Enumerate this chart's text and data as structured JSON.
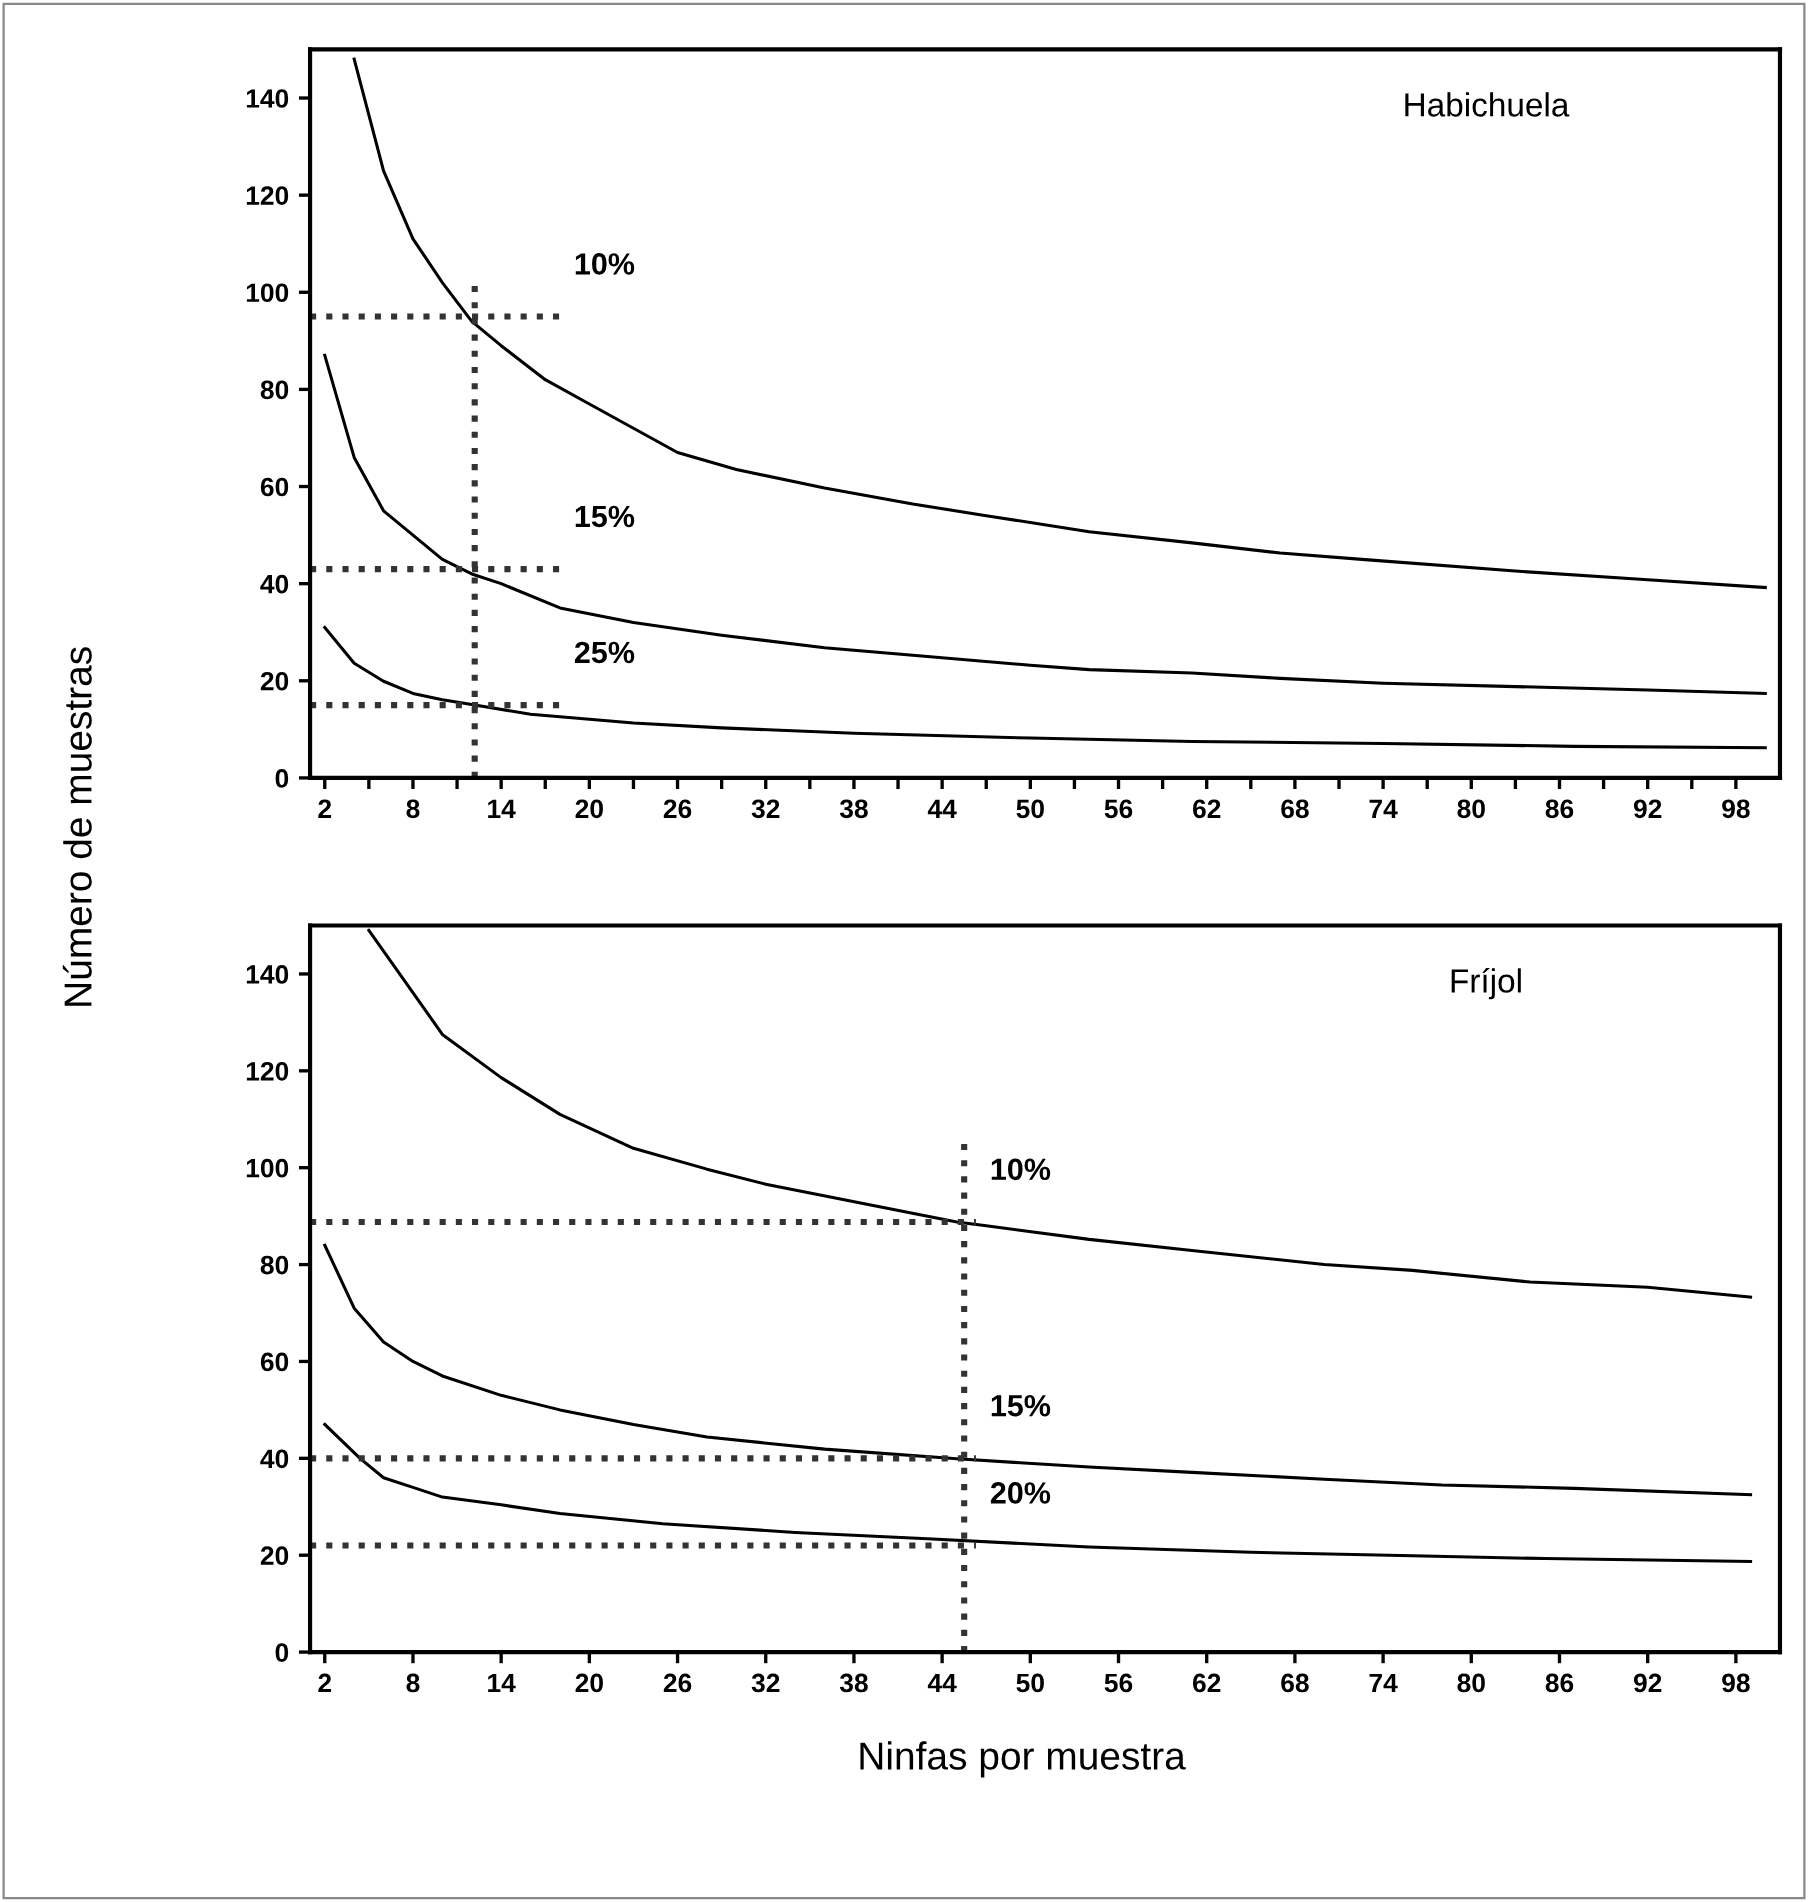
{
  "chart_data": [
    {
      "type": "line",
      "title": "Habichuela",
      "ylabel": "Número de muestras",
      "xlim": [
        1,
        101
      ],
      "ylim": [
        0,
        150
      ],
      "xticks": [
        2,
        {
          "value": 5,
          "label": null
        },
        8,
        {
          "value": 11,
          "label": null
        },
        14,
        {
          "value": 17,
          "label": null
        },
        20,
        {
          "value": 23,
          "label": null
        },
        26,
        {
          "value": 29,
          "label": null
        },
        32,
        {
          "value": 35,
          "label": null
        },
        38,
        {
          "value": 41,
          "label": null
        },
        44,
        {
          "value": 47,
          "label": null
        },
        50,
        {
          "value": 53,
          "label": null
        },
        56,
        {
          "value": 59,
          "label": null
        },
        62,
        {
          "value": 65,
          "label": null
        },
        68,
        {
          "value": 71,
          "label": null
        },
        74,
        {
          "value": 77,
          "label": null
        },
        80,
        {
          "value": 83,
          "label": null
        },
        86,
        {
          "value": 89,
          "label": null
        },
        92,
        {
          "value": 95,
          "label": null
        },
        98
      ],
      "yticks": [
        0,
        20,
        40,
        60,
        80,
        100,
        120,
        140
      ],
      "grid": false,
      "marker": "none",
      "line_style": "solid",
      "series": [
        {
          "color": "#000000",
          "x": [
            4,
            6,
            8,
            10,
            12,
            14,
            17,
            20,
            23,
            26,
            30,
            36,
            42,
            47,
            54,
            61,
            67,
            73,
            83,
            92,
            100
          ],
          "values": [
            148,
            125,
            111,
            102,
            94,
            89,
            82,
            77,
            72,
            67,
            63.5,
            59.7,
            56.4,
            54,
            50.7,
            48.4,
            46.3,
            44.9,
            42.6,
            40.8,
            39.2
          ]
        },
        {
          "color": "#000000",
          "x": [
            2,
            4,
            6,
            8,
            10,
            12,
            14,
            18,
            23,
            29,
            36,
            43,
            50,
            54,
            61,
            67,
            74,
            83,
            92,
            100
          ],
          "values": [
            87,
            66,
            55,
            50,
            45,
            42,
            40,
            35,
            32,
            29.4,
            26.8,
            25,
            23.2,
            22.3,
            21.6,
            20.5,
            19.5,
            18.8,
            18.1,
            17.4
          ]
        },
        {
          "color": "#000000",
          "x": [
            2,
            4,
            6,
            8,
            10,
            12,
            16,
            23,
            29,
            38,
            50,
            61,
            74,
            87,
            100
          ],
          "values": [
            31,
            23.6,
            19.9,
            17.4,
            16.1,
            15.1,
            13.1,
            11.3,
            10.3,
            9.2,
            8.2,
            7.5,
            7.1,
            6.5,
            6.2
          ]
        },
        {
          "color": "#333333",
          "type": "line",
          "line_style": "dotted",
          "x": [
            1,
            18
          ],
          "values": [
            95,
            95
          ]
        },
        {
          "color": "#333333",
          "type": "line",
          "line_style": "dotted",
          "x": [
            1,
            18
          ],
          "values": [
            43,
            43
          ]
        },
        {
          "color": "#333333",
          "type": "line",
          "line_style": "dotted",
          "x": [
            1,
            18
          ],
          "values": [
            15,
            15
          ]
        },
        {
          "color": "#333333",
          "type": "line",
          "line_style": "dotted",
          "x": [
            12.2,
            12.2
          ],
          "values": [
            0,
            102
          ]
        }
      ],
      "annotations": [
        "10%",
        "15%",
        "25%"
      ]
    },
    {
      "type": "line",
      "title": "Fríjol",
      "xlabel": "Ninfas por muestra",
      "xlim": [
        1,
        101
      ],
      "ylim": [
        0,
        150
      ],
      "xticks": [
        2,
        8,
        14,
        20,
        26,
        32,
        38,
        44,
        50,
        56,
        62,
        68,
        74,
        80,
        86,
        92,
        98
      ],
      "yticks": [
        0,
        20,
        40,
        60,
        80,
        100,
        120,
        140
      ],
      "grid": false,
      "marker": "none",
      "line_style": "solid",
      "series": [
        {
          "color": "#000000",
          "x": [
            5,
            8.5,
            10,
            14,
            18,
            23,
            28,
            32,
            40,
            45,
            47,
            54,
            61,
            70,
            76,
            84,
            92,
            99
          ],
          "values": [
            149,
            134,
            127.5,
            118.6,
            111,
            104,
            99.7,
            96.6,
            91.8,
            88.8,
            88,
            85.2,
            82.9,
            80,
            78.8,
            76.4,
            75.3,
            73.3
          ]
        },
        {
          "color": "#000000",
          "x": [
            2,
            4,
            6,
            8,
            10,
            14,
            18,
            23,
            28,
            36,
            45,
            54,
            61,
            70,
            78,
            87,
            99
          ],
          "values": [
            84,
            71,
            64,
            60,
            57,
            53,
            50,
            47,
            44.4,
            41.9,
            39.9,
            38.2,
            37.1,
            35.7,
            34.5,
            33.8,
            32.5
          ]
        },
        {
          "color": "#000000",
          "x": [
            2,
            4.4,
            6,
            8,
            10,
            14,
            18,
            25,
            34,
            43,
            54,
            65,
            76,
            85,
            99
          ],
          "values": [
            47,
            40,
            36,
            34,
            32,
            30.4,
            28.6,
            26.5,
            24.7,
            23.4,
            21.7,
            20.6,
            19.9,
            19.3,
            18.7
          ]
        },
        {
          "color": "#333333",
          "type": "line",
          "line_style": "dotted",
          "x": [
            1,
            46.3
          ],
          "values": [
            88.8,
            88.8
          ]
        },
        {
          "color": "#333333",
          "type": "line",
          "line_style": "dotted",
          "x": [
            1,
            46.3
          ],
          "values": [
            40,
            40
          ]
        },
        {
          "color": "#333333",
          "type": "line",
          "line_style": "dotted",
          "x": [
            1,
            46.3
          ],
          "values": [
            22,
            22
          ]
        },
        {
          "color": "#333333",
          "type": "line",
          "line_style": "dotted",
          "x": [
            45.5,
            45.5
          ],
          "values": [
            0,
            105
          ]
        }
      ],
      "annotations": [
        "10%",
        "15%",
        "20%"
      ]
    }
  ]
}
